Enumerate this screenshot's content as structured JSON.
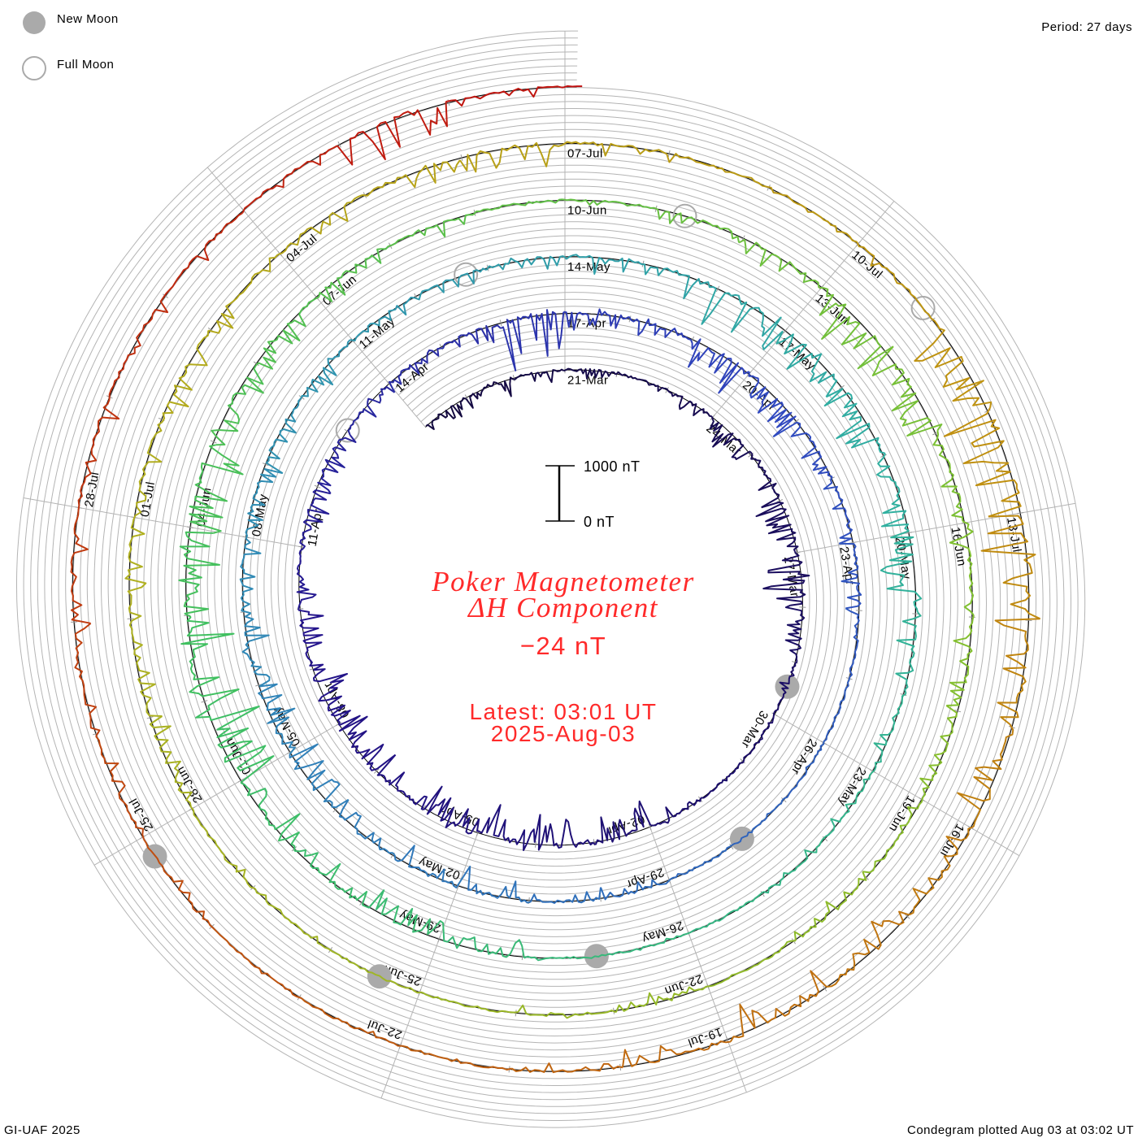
{
  "legend": {
    "new_moon_label": "New Moon",
    "full_moon_label": "Full Moon"
  },
  "period_text": "Period: 27 days",
  "footer": {
    "left": "GI-UAF 2025",
    "right": "Condegram plotted Aug 03 at 03:02 UT"
  },
  "center": {
    "title_line1": "Poker Magnetometer",
    "title_line2": "ΔH Component",
    "current_value": "−24 nT",
    "latest_line1": "Latest: 03:01 UT",
    "latest_line2": "2025-Aug-03"
  },
  "chart_data": {
    "type": "line",
    "subtype": "polar-spiral condegram",
    "title": "Poker Magnetometer ΔH Component",
    "period_days": 27,
    "start_date": "2025-03-18",
    "end": "2025-08-03 03:01 UT",
    "value_unit": "nT",
    "series_note": "approximate daily minimum ΔH (nT), one per day from 18-Mar",
    "daily_min_dH": [
      -250,
      -300,
      -200,
      -150,
      -120,
      -200,
      -400,
      -350,
      -500,
      -700,
      -300,
      -150,
      -120,
      -100,
      -200,
      -500,
      -550,
      -600,
      -500,
      -450,
      -500,
      -550,
      -400,
      -300,
      -350,
      -300,
      -250,
      -200,
      -300,
      -900,
      -300,
      -250,
      -600,
      -500,
      -300,
      -250,
      -300,
      -150,
      -100,
      -80,
      -60,
      -70,
      -200,
      -150,
      -400,
      -350,
      -300,
      -500,
      -450,
      -400,
      -300,
      -350,
      -250,
      -300,
      -200,
      -200,
      -250,
      -300,
      -400,
      -700,
      -500,
      -600,
      -450,
      -600,
      -300,
      -200,
      -150,
      -150,
      -100,
      -80,
      -100,
      -300,
      -400,
      -350,
      -500,
      -900,
      -800,
      -600,
      -700,
      -400,
      -350,
      -300,
      -250,
      -100,
      -100,
      -200,
      -300,
      -700,
      -600,
      -300,
      -400,
      -300,
      -200,
      -150,
      -200,
      -100,
      -200,
      -150,
      -100,
      -80,
      -100,
      -150,
      -300,
      -250,
      -300,
      -250,
      -350,
      -300,
      -250,
      -300,
      -400,
      -200,
      -150,
      -100,
      -150,
      -700,
      -900,
      -800,
      -600,
      -500,
      -300,
      -400,
      -500,
      -300,
      -150,
      -100,
      -80,
      -100,
      -150,
      -200,
      -300,
      -250,
      -300,
      -200,
      -200,
      -150,
      -600,
      -150,
      -100
    ],
    "scale_bar": {
      "top_label": "1000 nT",
      "bottom_label": "0 nT",
      "span_nT": 1000
    },
    "date_labels": [
      "21-Mar",
      "24-Mar",
      "27-Mar",
      "30-Mar",
      "02-Apr",
      "05-Apr",
      "08-Apr",
      "11-Apr",
      "14-Apr",
      "17-Apr",
      "20-Apr",
      "23-Apr",
      "26-Apr",
      "29-Apr",
      "02-May",
      "05-May",
      "08-May",
      "11-May",
      "14-May",
      "17-May",
      "20-May",
      "23-May",
      "26-May",
      "29-May",
      "01-Jun",
      "04-Jun",
      "07-Jun",
      "10-Jun",
      "13-Jun",
      "16-Jun",
      "19-Jun",
      "22-Jun",
      "25-Jun",
      "28-Jun",
      "01-Jul",
      "04-Jul",
      "07-Jul",
      "10-Jul",
      "13-Jul",
      "16-Jul",
      "19-Jul",
      "22-Jul",
      "25-Jul",
      "28-Jul"
    ],
    "new_moons": [
      "2025-03-29T10:58Z",
      "2025-04-27T19:31Z",
      "2025-05-27T03:02Z",
      "2025-06-25T10:31Z",
      "2025-07-24T19:11Z"
    ],
    "full_moons": [
      "2025-04-13T00:22Z",
      "2025-05-12T16:56Z",
      "2025-06-11T07:44Z",
      "2025-07-10T20:37Z"
    ],
    "color_stops": [
      [
        0,
        "#140a40"
      ],
      [
        22,
        "#24148c"
      ],
      [
        33,
        "#3048c0"
      ],
      [
        48,
        "#3084b8"
      ],
      [
        62,
        "#30b0a0"
      ],
      [
        76,
        "#40c060"
      ],
      [
        90,
        "#80c030"
      ],
      [
        104,
        "#b0b020"
      ],
      [
        116,
        "#c09010"
      ],
      [
        126,
        "#c05a10"
      ],
      [
        138,
        "#c01010"
      ]
    ],
    "colors": {
      "baseline": "#000000",
      "grid": "#b4b4b4",
      "moon": "#aaaaaa",
      "title": "#ff2a2a"
    }
  }
}
